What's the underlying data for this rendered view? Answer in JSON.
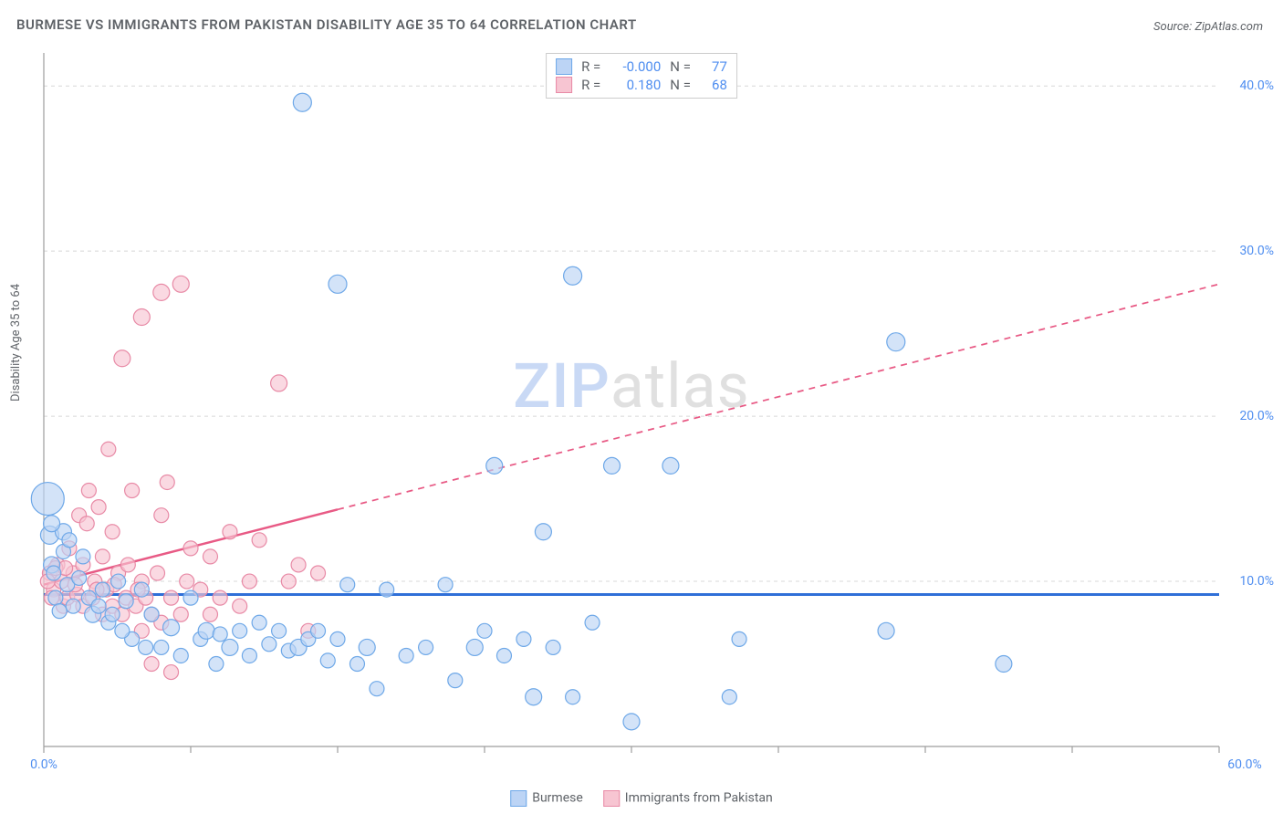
{
  "title": "BURMESE VS IMMIGRANTS FROM PAKISTAN DISABILITY AGE 35 TO 64 CORRELATION CHART",
  "source_prefix": "Source: ",
  "source_name": "ZipAtlas.com",
  "y_axis_label": "Disability Age 35 to 64",
  "watermark": {
    "part1": "ZIP",
    "part2": "atlas"
  },
  "chart": {
    "type": "scatter",
    "background_color": "#ffffff",
    "grid_color": "#d8d8d8",
    "axis_color": "#9e9e9e",
    "xlim": [
      0,
      60
    ],
    "ylim": [
      0,
      42
    ],
    "x_ticks": [
      0,
      7.5,
      15,
      22.5,
      30,
      37.5,
      45,
      52.5,
      60
    ],
    "x_tick_labels": {
      "0": "0.0%",
      "60": "60.0%"
    },
    "y_ticks": [
      10,
      20,
      30,
      40
    ],
    "y_tick_labels": {
      "10": "10.0%",
      "20": "20.0%",
      "30": "30.0%",
      "40": "40.0%"
    },
    "series": [
      {
        "id": "burmese",
        "label": "Burmese",
        "fill": "#bcd4f5",
        "stroke": "#6ea8e8",
        "fill_opacity": 0.65,
        "trend": {
          "y1": 9.2,
          "y2": 9.2,
          "solid_until_x": 60,
          "color": "#2f6fd8",
          "width": 3
        },
        "legend_stats": {
          "R": "-0.000",
          "N": "77"
        },
        "points": [
          {
            "x": 0.2,
            "y": 15,
            "r": 18
          },
          {
            "x": 0.3,
            "y": 12.8,
            "r": 10
          },
          {
            "x": 0.4,
            "y": 11,
            "r": 9
          },
          {
            "x": 0.5,
            "y": 10.5,
            "r": 8
          },
          {
            "x": 0.6,
            "y": 9.0,
            "r": 8
          },
          {
            "x": 0.8,
            "y": 8.2,
            "r": 8
          },
          {
            "x": 1.0,
            "y": 13.0,
            "r": 9
          },
          {
            "x": 1.2,
            "y": 9.8,
            "r": 8
          },
          {
            "x": 1.5,
            "y": 8.5,
            "r": 8
          },
          {
            "x": 1.8,
            "y": 10.2,
            "r": 8
          },
          {
            "x": 2.0,
            "y": 11.5,
            "r": 8
          },
          {
            "x": 2.3,
            "y": 9.0,
            "r": 8
          },
          {
            "x": 2.5,
            "y": 8.0,
            "r": 9
          },
          {
            "x": 3.0,
            "y": 9.5,
            "r": 8
          },
          {
            "x": 3.3,
            "y": 7.5,
            "r": 8
          },
          {
            "x": 3.8,
            "y": 10.0,
            "r": 8
          },
          {
            "x": 4.2,
            "y": 8.8,
            "r": 8
          },
          {
            "x": 4.5,
            "y": 6.5,
            "r": 8
          },
          {
            "x": 5.0,
            "y": 9.5,
            "r": 8
          },
          {
            "x": 5.5,
            "y": 8.0,
            "r": 8
          },
          {
            "x": 6.0,
            "y": 6.0,
            "r": 8
          },
          {
            "x": 6.5,
            "y": 7.2,
            "r": 9
          },
          {
            "x": 7.0,
            "y": 5.5,
            "r": 8
          },
          {
            "x": 7.5,
            "y": 9.0,
            "r": 8
          },
          {
            "x": 8.0,
            "y": 6.5,
            "r": 8
          },
          {
            "x": 8.3,
            "y": 7.0,
            "r": 9
          },
          {
            "x": 8.8,
            "y": 5.0,
            "r": 8
          },
          {
            "x": 9.0,
            "y": 6.8,
            "r": 8
          },
          {
            "x": 9.5,
            "y": 6.0,
            "r": 9
          },
          {
            "x": 10.0,
            "y": 7.0,
            "r": 8
          },
          {
            "x": 10.5,
            "y": 5.5,
            "r": 8
          },
          {
            "x": 11.0,
            "y": 7.5,
            "r": 8
          },
          {
            "x": 11.5,
            "y": 6.2,
            "r": 8
          },
          {
            "x": 12.0,
            "y": 7.0,
            "r": 8
          },
          {
            "x": 12.5,
            "y": 5.8,
            "r": 8
          },
          {
            "x": 13.0,
            "y": 6.0,
            "r": 9
          },
          {
            "x": 13.2,
            "y": 39.0,
            "r": 10
          },
          {
            "x": 13.5,
            "y": 6.5,
            "r": 8
          },
          {
            "x": 14.0,
            "y": 7.0,
            "r": 8
          },
          {
            "x": 14.5,
            "y": 5.2,
            "r": 8
          },
          {
            "x": 15.0,
            "y": 28.0,
            "r": 10
          },
          {
            "x": 15.0,
            "y": 6.5,
            "r": 8
          },
          {
            "x": 15.5,
            "y": 9.8,
            "r": 8
          },
          {
            "x": 16.0,
            "y": 5.0,
            "r": 8
          },
          {
            "x": 16.5,
            "y": 6.0,
            "r": 9
          },
          {
            "x": 17.0,
            "y": 3.5,
            "r": 8
          },
          {
            "x": 17.5,
            "y": 9.5,
            "r": 8
          },
          {
            "x": 18.5,
            "y": 5.5,
            "r": 8
          },
          {
            "x": 19.5,
            "y": 6.0,
            "r": 8
          },
          {
            "x": 20.5,
            "y": 9.8,
            "r": 8
          },
          {
            "x": 21.0,
            "y": 4.0,
            "r": 8
          },
          {
            "x": 22.0,
            "y": 6.0,
            "r": 9
          },
          {
            "x": 22.5,
            "y": 7.0,
            "r": 8
          },
          {
            "x": 23.0,
            "y": 17.0,
            "r": 9
          },
          {
            "x": 23.5,
            "y": 5.5,
            "r": 8
          },
          {
            "x": 24.5,
            "y": 6.5,
            "r": 8
          },
          {
            "x": 25.0,
            "y": 3.0,
            "r": 9
          },
          {
            "x": 25.5,
            "y": 13.0,
            "r": 9
          },
          {
            "x": 26.0,
            "y": 6.0,
            "r": 8
          },
          {
            "x": 27.0,
            "y": 28.5,
            "r": 10
          },
          {
            "x": 27.0,
            "y": 3.0,
            "r": 8
          },
          {
            "x": 28.0,
            "y": 7.5,
            "r": 8
          },
          {
            "x": 29.0,
            "y": 17.0,
            "r": 9
          },
          {
            "x": 30.0,
            "y": 1.5,
            "r": 9
          },
          {
            "x": 32.0,
            "y": 17.0,
            "r": 9
          },
          {
            "x": 35.0,
            "y": 3.0,
            "r": 8
          },
          {
            "x": 35.5,
            "y": 6.5,
            "r": 8
          },
          {
            "x": 43.0,
            "y": 7.0,
            "r": 9
          },
          {
            "x": 43.5,
            "y": 24.5,
            "r": 10
          },
          {
            "x": 49.0,
            "y": 5.0,
            "r": 9
          },
          {
            "x": 1.0,
            "y": 11.8,
            "r": 8
          },
          {
            "x": 1.3,
            "y": 12.5,
            "r": 8
          },
          {
            "x": 0.4,
            "y": 13.5,
            "r": 9
          },
          {
            "x": 2.8,
            "y": 8.5,
            "r": 8
          },
          {
            "x": 3.5,
            "y": 8.0,
            "r": 8
          },
          {
            "x": 4.0,
            "y": 7.0,
            "r": 8
          },
          {
            "x": 5.2,
            "y": 6.0,
            "r": 8
          }
        ]
      },
      {
        "id": "pakistan",
        "label": "Immigrants from Pakistan",
        "fill": "#f7c5d2",
        "stroke": "#e88aa6",
        "fill_opacity": 0.65,
        "trend": {
          "y1": 9.8,
          "y2": 28.0,
          "solid_until_x": 15,
          "color": "#e85a85",
          "width": 2.5
        },
        "legend_stats": {
          "R": "0.180",
          "N": "68"
        },
        "points": [
          {
            "x": 0.3,
            "y": 10.5,
            "r": 8
          },
          {
            "x": 0.5,
            "y": 9.5,
            "r": 8
          },
          {
            "x": 0.7,
            "y": 11.0,
            "r": 8
          },
          {
            "x": 0.9,
            "y": 10.0,
            "r": 8
          },
          {
            "x": 1.0,
            "y": 8.5,
            "r": 8
          },
          {
            "x": 1.2,
            "y": 9.0,
            "r": 8
          },
          {
            "x": 1.3,
            "y": 12.0,
            "r": 8
          },
          {
            "x": 1.5,
            "y": 10.5,
            "r": 8
          },
          {
            "x": 1.7,
            "y": 9.2,
            "r": 8
          },
          {
            "x": 1.8,
            "y": 14.0,
            "r": 8
          },
          {
            "x": 2.0,
            "y": 8.5,
            "r": 8
          },
          {
            "x": 2.0,
            "y": 11.0,
            "r": 8
          },
          {
            "x": 2.2,
            "y": 13.5,
            "r": 8
          },
          {
            "x": 2.3,
            "y": 15.5,
            "r": 8
          },
          {
            "x": 2.5,
            "y": 9.0,
            "r": 8
          },
          {
            "x": 2.6,
            "y": 10.0,
            "r": 8
          },
          {
            "x": 2.8,
            "y": 14.5,
            "r": 8
          },
          {
            "x": 3.0,
            "y": 8.0,
            "r": 8
          },
          {
            "x": 3.0,
            "y": 11.5,
            "r": 8
          },
          {
            "x": 3.2,
            "y": 9.5,
            "r": 8
          },
          {
            "x": 3.3,
            "y": 18.0,
            "r": 8
          },
          {
            "x": 3.5,
            "y": 8.5,
            "r": 8
          },
          {
            "x": 3.5,
            "y": 13.0,
            "r": 8
          },
          {
            "x": 3.8,
            "y": 10.5,
            "r": 8
          },
          {
            "x": 4.0,
            "y": 8.0,
            "r": 8
          },
          {
            "x": 4.0,
            "y": 23.5,
            "r": 9
          },
          {
            "x": 4.2,
            "y": 9.0,
            "r": 8
          },
          {
            "x": 4.3,
            "y": 11.0,
            "r": 8
          },
          {
            "x": 4.5,
            "y": 15.5,
            "r": 8
          },
          {
            "x": 4.7,
            "y": 8.5,
            "r": 8
          },
          {
            "x": 5.0,
            "y": 7.0,
            "r": 8
          },
          {
            "x": 5.0,
            "y": 10.0,
            "r": 8
          },
          {
            "x": 5.0,
            "y": 26.0,
            "r": 9
          },
          {
            "x": 5.2,
            "y": 9.0,
            "r": 8
          },
          {
            "x": 5.5,
            "y": 5.0,
            "r": 8
          },
          {
            "x": 5.5,
            "y": 8.0,
            "r": 8
          },
          {
            "x": 5.8,
            "y": 10.5,
            "r": 8
          },
          {
            "x": 6.0,
            "y": 7.5,
            "r": 8
          },
          {
            "x": 6.0,
            "y": 14.0,
            "r": 8
          },
          {
            "x": 6.0,
            "y": 27.5,
            "r": 9
          },
          {
            "x": 6.3,
            "y": 16.0,
            "r": 8
          },
          {
            "x": 6.5,
            "y": 4.5,
            "r": 8
          },
          {
            "x": 6.5,
            "y": 9.0,
            "r": 8
          },
          {
            "x": 7.0,
            "y": 8.0,
            "r": 8
          },
          {
            "x": 7.0,
            "y": 28.0,
            "r": 9
          },
          {
            "x": 7.3,
            "y": 10.0,
            "r": 8
          },
          {
            "x": 7.5,
            "y": 12.0,
            "r": 8
          },
          {
            "x": 8.0,
            "y": 9.5,
            "r": 8
          },
          {
            "x": 8.5,
            "y": 8.0,
            "r": 8
          },
          {
            "x": 8.5,
            "y": 11.5,
            "r": 8
          },
          {
            "x": 9.0,
            "y": 9.0,
            "r": 8
          },
          {
            "x": 9.5,
            "y": 13.0,
            "r": 8
          },
          {
            "x": 10.0,
            "y": 8.5,
            "r": 8
          },
          {
            "x": 10.5,
            "y": 10.0,
            "r": 8
          },
          {
            "x": 11.0,
            "y": 12.5,
            "r": 8
          },
          {
            "x": 12.0,
            "y": 22.0,
            "r": 9
          },
          {
            "x": 12.5,
            "y": 10.0,
            "r": 8
          },
          {
            "x": 13.0,
            "y": 11.0,
            "r": 8
          },
          {
            "x": 13.5,
            "y": 7.0,
            "r": 8
          },
          {
            "x": 14.0,
            "y": 10.5,
            "r": 8
          },
          {
            "x": 0.2,
            "y": 10.0,
            "r": 8
          },
          {
            "x": 0.4,
            "y": 9.0,
            "r": 8
          },
          {
            "x": 0.6,
            "y": 10.8,
            "r": 8
          },
          {
            "x": 1.1,
            "y": 10.8,
            "r": 8
          },
          {
            "x": 1.6,
            "y": 9.8,
            "r": 8
          },
          {
            "x": 2.7,
            "y": 9.5,
            "r": 8
          },
          {
            "x": 3.6,
            "y": 9.8,
            "r": 8
          },
          {
            "x": 4.8,
            "y": 9.5,
            "r": 8
          }
        ]
      }
    ]
  },
  "legend_bottom": [
    {
      "label": "Burmese",
      "fill": "#bcd4f5",
      "stroke": "#6ea8e8"
    },
    {
      "label": "Immigrants from Pakistan",
      "fill": "#f7c5d2",
      "stroke": "#e88aa6"
    }
  ]
}
